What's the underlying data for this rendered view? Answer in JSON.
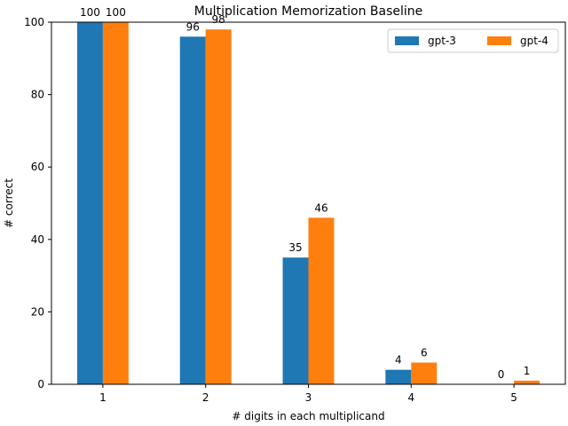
{
  "chart_data": {
    "type": "bar",
    "title": "Multiplication Memorization Baseline",
    "xlabel": "# digits in each multiplicand",
    "ylabel": "# correct",
    "categories": [
      "1",
      "2",
      "3",
      "4",
      "5"
    ],
    "series": [
      {
        "name": "gpt-3",
        "values": [
          100,
          96,
          35,
          4,
          0
        ],
        "color": "#1f77b4"
      },
      {
        "name": "gpt-4",
        "values": [
          100,
          98,
          46,
          6,
          1
        ],
        "color": "#ff7f0e"
      }
    ],
    "ylim": [
      0,
      100
    ],
    "yticks": [
      0,
      20,
      40,
      60,
      80,
      100
    ],
    "legend_position": "top-right",
    "grid": false
  }
}
